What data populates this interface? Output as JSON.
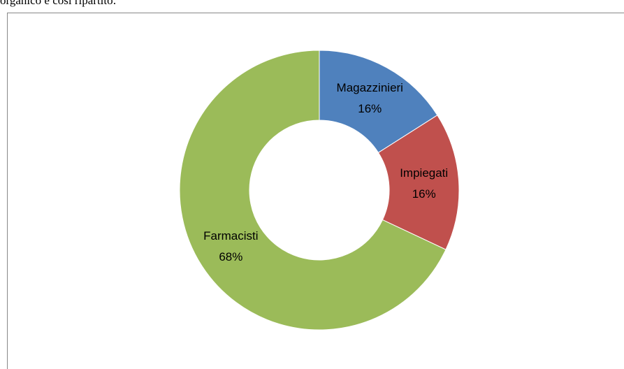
{
  "header": {
    "text": "organico è così ripartito:"
  },
  "chart_data": {
    "type": "donut",
    "categories": [
      "Magazzinieri",
      "Impiegati",
      "Farmacisti"
    ],
    "values": [
      16,
      16,
      68
    ],
    "value_labels": [
      "16%",
      "16%",
      "68%"
    ],
    "colors": [
      "#4f81bd",
      "#c0504d",
      "#9bbb59"
    ]
  }
}
